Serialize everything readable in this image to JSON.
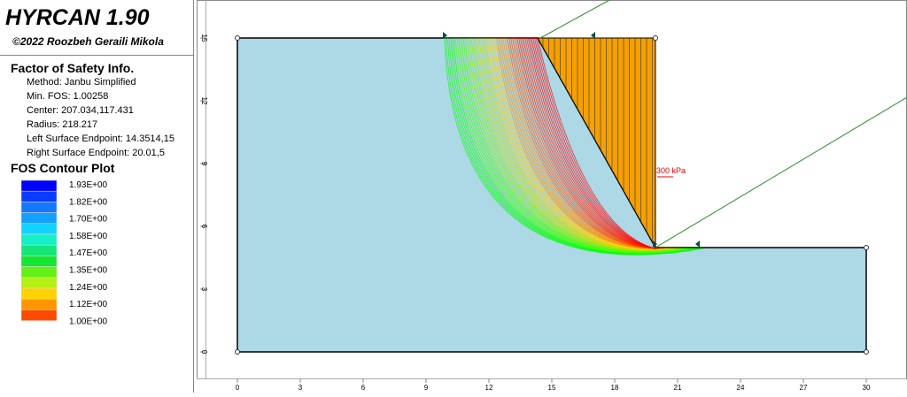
{
  "header": {
    "title": "HYRCAN 1.90",
    "copyright": "©2022 Roozbeh Geraili Mikola"
  },
  "info": {
    "heading": "Factor of Safety Info.",
    "lines": [
      "Method: Janbu Simplified",
      "Min. FOS: 1.00258",
      "Center: 207.034,117.431",
      "Radius: 218.217",
      "Left Surface Endpoint: 14.3514,15",
      "Right Surface Endpoint: 20.01,5"
    ]
  },
  "contour": {
    "heading": "FOS Contour Plot",
    "labels": [
      "1.93E+00",
      "1.82E+00",
      "1.70E+00",
      "1.58E+00",
      "1.47E+00",
      "1.35E+00",
      "1.24E+00",
      "1.12E+00",
      "1.00E+00"
    ]
  },
  "plot": {
    "xticks": [
      0,
      3,
      6,
      9,
      12,
      15,
      18,
      21,
      24,
      27,
      30
    ],
    "yticks": [
      0,
      3,
      6,
      9,
      12,
      15
    ],
    "load_label": "300 kPa"
  }
}
